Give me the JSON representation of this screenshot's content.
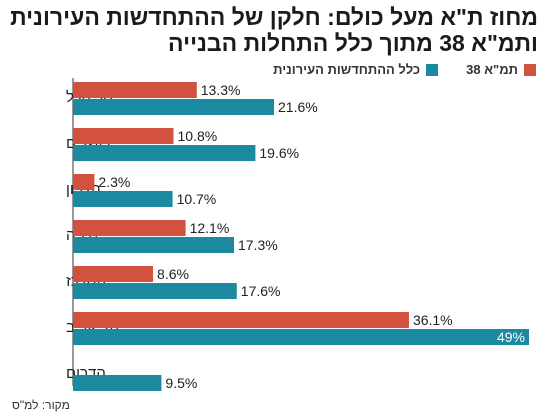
{
  "chart_data": {
    "type": "bar",
    "orientation": "horizontal",
    "title": "מחוז ת\"א מעל כולם: חלקן של ההתחדשות העירונית ותמ\"א 38 מתוך כלל התחלות הבנייה",
    "categories": [
      "סך הכל",
      "ירושלים",
      "הצפון",
      "חיפה",
      "המרכז",
      "תל אביב",
      "הדרום"
    ],
    "series": [
      {
        "name": "תמ\"א 38",
        "color": "#d2513f",
        "values": [
          13.3,
          10.8,
          2.3,
          12.1,
          8.6,
          36.1,
          null
        ]
      },
      {
        "name": "כלל ההתחדשות העירונית",
        "color": "#1b8aa0",
        "values": [
          21.6,
          19.6,
          10.7,
          17.3,
          17.6,
          49,
          9.5
        ]
      }
    ],
    "value_labels": {
      "תמ\"א 38": [
        "13.3%",
        "10.8%",
        "2.3%",
        "12.1%",
        "8.6%",
        "36.1%",
        ""
      ],
      "כלל ההתחדשות העירונית": [
        "21.6%",
        "19.6%",
        "10.7%",
        "17.3%",
        "17.6%",
        "49%",
        "9.5%"
      ]
    },
    "xlim": [
      0,
      49
    ],
    "legend_position": "top-right",
    "grid": false
  },
  "source": "מקור: למ\"ס"
}
